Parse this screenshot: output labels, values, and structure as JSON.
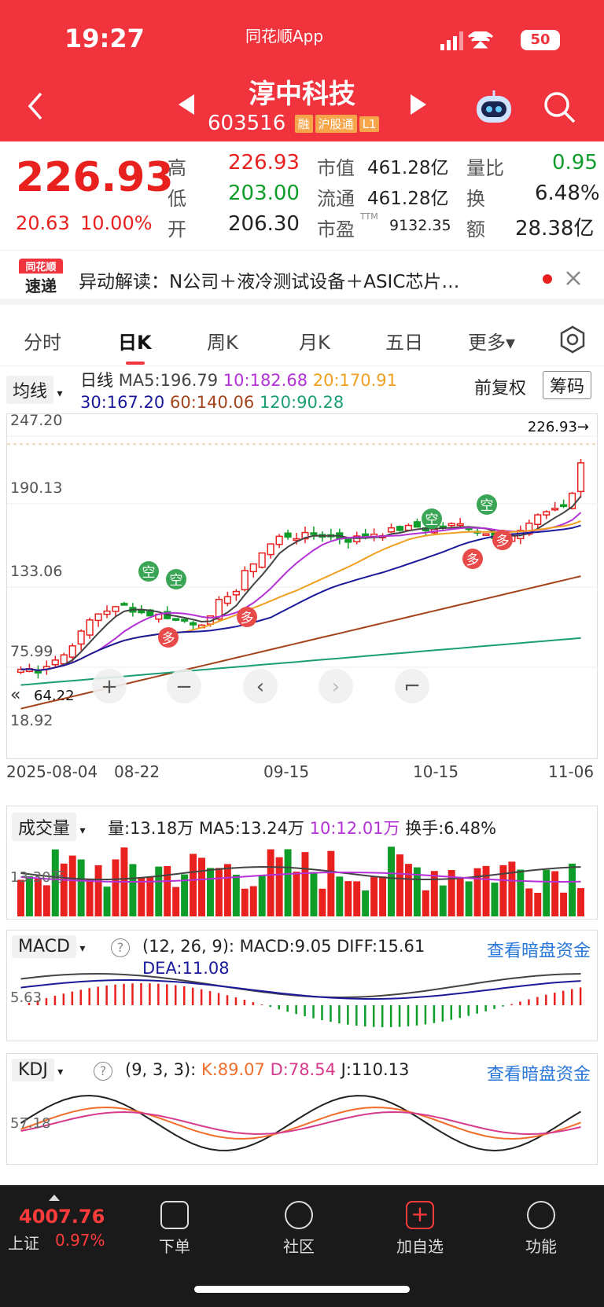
{
  "status_bar": {
    "time": "19:27",
    "app": "同花顺App",
    "battery": "50"
  },
  "header": {
    "title": "淳中科技",
    "code": "603516",
    "badges": [
      "融",
      "沪股通",
      "L1"
    ]
  },
  "quote": {
    "price": "226.93",
    "change": "20.63",
    "change_pct": "10.00%",
    "high_label": "高",
    "high": "226.93",
    "low_label": "低",
    "low": "203.00",
    "open_label": "开",
    "open": "206.30",
    "mktcap_label": "市值",
    "mktcap": "461.28亿",
    "float_label": "流通",
    "float": "461.28亿",
    "pe_label": "市盈",
    "pe_sup": "TTM",
    "pe": "9132.35",
    "vol_ratio_label": "量比",
    "vol_ratio": "0.95",
    "turnover_label": "换",
    "turnover": "6.48%",
    "amount_label": "额",
    "amount": "28.38亿"
  },
  "news": {
    "logo_top": "同花顺",
    "logo_bottom": "速递",
    "text": "异动解读：N公司＋液冷测试设备＋ASIC芯片…"
  },
  "tabs": [
    "分时",
    "日K",
    "周K",
    "月K",
    "五日",
    "更多▾"
  ],
  "kline": {
    "indicator": "均线",
    "line_label": "日线",
    "ma5": "MA5:196.79",
    "ma10": "10:182.68",
    "ma20": "20:170.91",
    "ma30": "30:167.20",
    "ma60": "60:140.06",
    "ma120": "120:90.28",
    "adj": "前复权",
    "chip": "筹码",
    "y_labels": [
      "247.20",
      "190.13",
      "133.06",
      "75.99",
      "18.92"
    ],
    "last_price_tag": "226.93→",
    "low_tag": "64.22",
    "dates": [
      "2025-08-04",
      "08-22",
      "09-15",
      "10-15",
      "11-06"
    ],
    "signals": {
      "kong": "空",
      "duo": "多"
    },
    "colors": {
      "ma5": "#444444",
      "ma10": "#b431d6",
      "ma20": "#f0a020",
      "ma30": "#1a1a9a",
      "ma60": "#a4441c",
      "ma120": "#1b9e77"
    }
  },
  "volume": {
    "indicator": "成交量",
    "vol": "量:13.18万",
    "ma5": "MA5:13.24万",
    "ma10": "10:12.01万",
    "turnover": "换手:6.48%",
    "y_label": "13.30万"
  },
  "macd": {
    "indicator": "MACD",
    "params": "(12, 26, 9):",
    "macd": "MACD:9.05",
    "diff": "DIFF:15.61",
    "dea": "DEA:11.08",
    "link": "查看暗盘资金",
    "y_label": "5.63"
  },
  "kdj": {
    "indicator": "KDJ",
    "params": "(9, 3, 3):",
    "k": "K:89.07",
    "d": "D:78.54",
    "j": "J:110.13",
    "link": "查看暗盘资金",
    "y_label": "57.18"
  },
  "bottom": {
    "index_value": "4007.76",
    "index_name": "上证",
    "index_pct": "0.97%",
    "items": [
      "下单",
      "社区",
      "加自选",
      "功能"
    ]
  }
}
